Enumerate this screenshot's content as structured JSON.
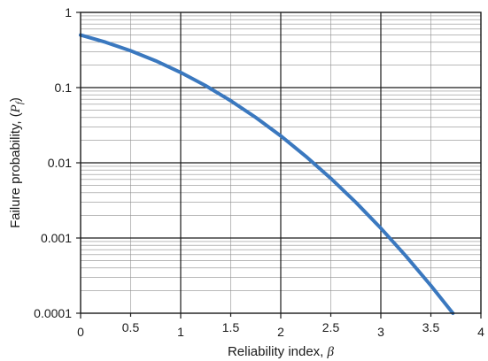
{
  "chart_data": {
    "type": "line",
    "title": "",
    "xlabel": "Reliability index, ",
    "xlabel_symbol": "β",
    "ylabel": "Failure probability, (",
    "ylabel_symbol": "P",
    "ylabel_subscript": "f",
    "ylabel_suffix": ")",
    "xlim": [
      0,
      4
    ],
    "ylim": [
      0.0001,
      1
    ],
    "yscale": "log",
    "grid": true,
    "x_ticks": [
      0,
      0.5,
      1,
      1.5,
      2,
      2.5,
      3,
      3.5,
      4
    ],
    "x_tick_labels": [
      "0",
      "0.5",
      "1",
      "1.5",
      "2",
      "2.5",
      "3",
      "3.5",
      "4"
    ],
    "y_ticks": [
      0.0001,
      0.001,
      0.01,
      0.1,
      1
    ],
    "y_tick_labels": [
      "0.0001",
      "0.001",
      "0.01",
      "0.1",
      "1"
    ],
    "series": [
      {
        "color": "#3a78bf",
        "x": [
          0,
          0.25,
          0.5,
          0.75,
          1,
          1.25,
          1.5,
          1.75,
          2,
          2.25,
          2.5,
          2.75,
          3,
          3.25,
          3.5,
          3.72
        ],
        "y": [
          0.5,
          0.401,
          0.309,
          0.227,
          0.159,
          0.106,
          0.0668,
          0.0401,
          0.0228,
          0.0122,
          0.00621,
          0.00298,
          0.00135,
          0.000577,
          0.000233,
          0.0001
        ]
      }
    ]
  }
}
